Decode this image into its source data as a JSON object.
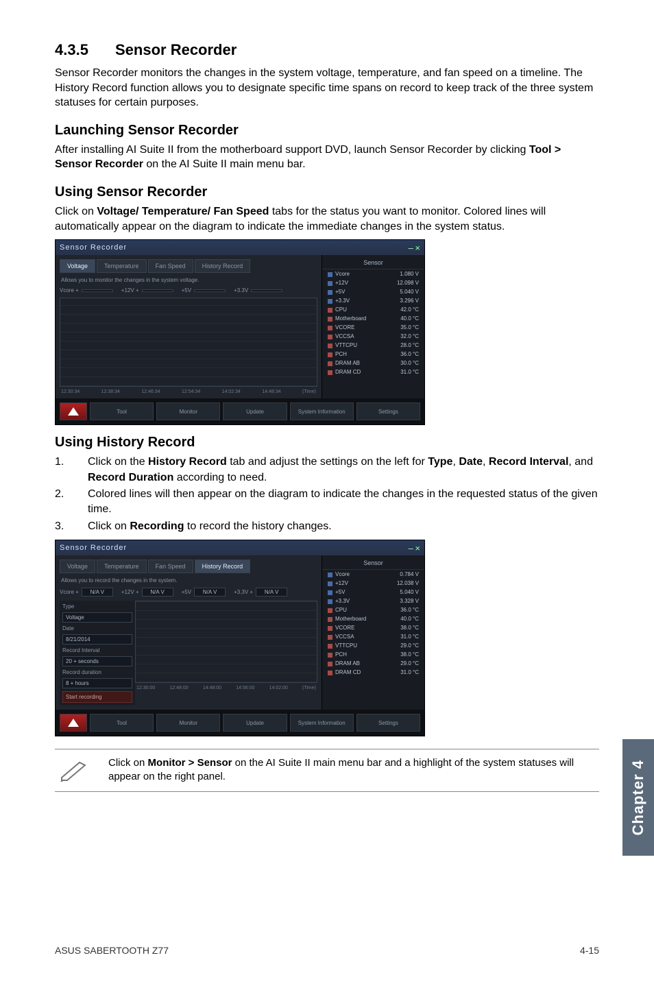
{
  "section": {
    "number": "4.3.5",
    "title": "Sensor Recorder"
  },
  "intro": "Sensor Recorder monitors the changes in the system voltage, temperature, and fan speed on a timeline. The History Record function allows you to designate specific time spans on record to keep track of the three system statuses for certain purposes.",
  "h_launch": "Launching Sensor Recorder",
  "p_launch_a": "After installing AI Suite II from the motherboard support DVD, launch Sensor Recorder by clicking ",
  "p_launch_b": "Tool > Sensor Recorder",
  "p_launch_c": " on the AI Suite II main menu bar.",
  "h_using": "Using Sensor Recorder",
  "p_using_a": "Click on ",
  "p_using_b": "Voltage/ Temperature/ Fan Speed",
  "p_using_c": " tabs for the status you want to monitor. Colored lines will automatically appear on the diagram to indicate the immediate changes in the system status.",
  "h_history": "Using History Record",
  "step1_a": "Click on the ",
  "step1_b": "History Record",
  "step1_c": " tab and adjust the settings on the left for ",
  "step1_d": "Type",
  "step1_e": ", ",
  "step1_f": "Date",
  "step1_g": ", ",
  "step1_h": "Record Interval",
  "step1_i": ", and ",
  "step1_j": "Record Duration",
  "step1_k": " according to need.",
  "step2": "Colored lines will then appear on the diagram to indicate the changes in the requested status of the given time.",
  "step3_a": "Click on ",
  "step3_b": "Recording",
  "step3_c": " to record the history changes.",
  "step_n1": "1.",
  "step_n2": "2.",
  "step_n3": "3.",
  "note_a": "Click on ",
  "note_b": "Monitor > Sensor",
  "note_c": " on the AI Suite II main menu bar and a highlight of the system statuses will appear on the right panel.",
  "chapter_tab": "Chapter 4",
  "footer_left": "ASUS SABERTOOTH Z77",
  "footer_right": "4-15",
  "shot1": {
    "title": "Sensor Recorder",
    "close": "×",
    "min": "–",
    "tabs": [
      "Voltage",
      "Temperature",
      "Fan Speed",
      "History Record"
    ],
    "active_tab": 0,
    "desc": "Allows you to monitor the changes in the system voltage.",
    "inputs": [
      {
        "lbl": "Vcore +",
        "val": ""
      },
      {
        "lbl": "+12V +",
        "val": ""
      },
      {
        "lbl": "+5V",
        "val": ""
      },
      {
        "lbl": "+3.3V",
        "val": ""
      }
    ],
    "times": [
      "12:30:34",
      "12:38:34",
      "12:46:34",
      "12:54:34",
      "14:02:34",
      "14:48:34"
    ],
    "time_unit": "(Time)",
    "sensor_title": "Sensor",
    "sensor_rows": [
      {
        "cls": "blue",
        "lbl": "Vcore",
        "val": "1.080 V"
      },
      {
        "cls": "blue",
        "lbl": "+12V",
        "val": "12.098 V"
      },
      {
        "cls": "blue",
        "lbl": "+5V",
        "val": "5.040 V"
      },
      {
        "cls": "blue",
        "lbl": "+3.3V",
        "val": "3.296 V"
      },
      {
        "cls": "red",
        "lbl": "CPU",
        "val": "42.0 °C"
      },
      {
        "cls": "red",
        "lbl": "Motherboard",
        "val": "40.0 °C"
      },
      {
        "cls": "red",
        "lbl": "VCORE",
        "val": "35.0 °C"
      },
      {
        "cls": "red",
        "lbl": "VCCSA",
        "val": "32.0 °C"
      },
      {
        "cls": "red",
        "lbl": "VTTCPU",
        "val": "28.0 °C"
      },
      {
        "cls": "red",
        "lbl": "PCH",
        "val": "36.0 °C"
      },
      {
        "cls": "red",
        "lbl": "DRAM AB",
        "val": "30.0 °C"
      },
      {
        "cls": "red",
        "lbl": "DRAM CD",
        "val": "31.0 °C"
      }
    ],
    "bottom": [
      "Tool",
      "Monitor",
      "Update",
      "System Information",
      "Settings"
    ]
  },
  "shot2": {
    "title": "Sensor Recorder",
    "close": "×",
    "min": "–",
    "tabs": [
      "Voltage",
      "Temperature",
      "Fan Speed",
      "History Record"
    ],
    "active_tab": 3,
    "desc": "Allows you to record the changes in the system.",
    "inputs": [
      {
        "lbl": "Vcore +",
        "val": "N/A V"
      },
      {
        "lbl": "+12V +",
        "val": "N/A V"
      },
      {
        "lbl": "+5V",
        "val": "N/A V"
      },
      {
        "lbl": "+3.3V +",
        "val": "N/A V"
      }
    ],
    "left_panel": {
      "type_lbl": "Type",
      "type_val": "Voltage",
      "date_lbl": "Date",
      "date_val": "8/21/2014",
      "ri_lbl": "Record Interval",
      "ri_val": "20   +  seconds",
      "rd_lbl": "Record duration",
      "rd_val": "8   +  hours",
      "rec_btn": "Start recording"
    },
    "times": [
      "12:30:00",
      "12:48:00",
      "14:48:00",
      "14:56:00",
      "14:02:00"
    ],
    "time_unit": "(Time)",
    "sensor_title": "Sensor",
    "sensor_rows": [
      {
        "cls": "blue",
        "lbl": "Vcore",
        "val": "0.784 V"
      },
      {
        "cls": "blue",
        "lbl": "+12V",
        "val": "12.038 V"
      },
      {
        "cls": "blue",
        "lbl": "+5V",
        "val": "5.040 V"
      },
      {
        "cls": "blue",
        "lbl": "+3.3V",
        "val": "3.328 V"
      },
      {
        "cls": "red",
        "lbl": "CPU",
        "val": "36.0 °C"
      },
      {
        "cls": "red",
        "lbl": "Motherboard",
        "val": "40.0 °C"
      },
      {
        "cls": "red",
        "lbl": "VCORE",
        "val": "38.0 °C"
      },
      {
        "cls": "red",
        "lbl": "VCCSA",
        "val": "31.0 °C"
      },
      {
        "cls": "red",
        "lbl": "VTTCPU",
        "val": "29.0 °C"
      },
      {
        "cls": "red",
        "lbl": "PCH",
        "val": "38.0 °C"
      },
      {
        "cls": "red",
        "lbl": "DRAM AB",
        "val": "29.0 °C"
      },
      {
        "cls": "red",
        "lbl": "DRAM CD",
        "val": "31.0 °C"
      }
    ],
    "bottom": [
      "Tool",
      "Monitor",
      "Update",
      "System Information",
      "Settings"
    ]
  }
}
